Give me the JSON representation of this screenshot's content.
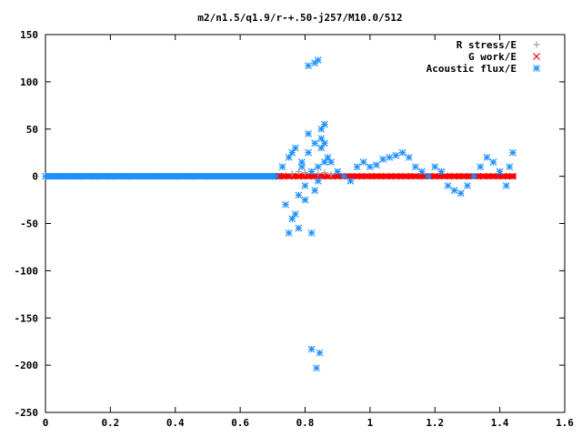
{
  "chart_data": {
    "type": "scatter",
    "title": "m2/n1.5/q1.9/r-+.50-j257/M10.0/512",
    "xlabel": "",
    "ylabel": "",
    "xlim": [
      0,
      1.6
    ],
    "ylim": [
      -250,
      150
    ],
    "xticks": [
      0,
      0.2,
      0.4,
      0.6,
      0.8,
      1,
      1.2,
      1.4,
      1.6
    ],
    "xtick_labels": [
      "0",
      "0.2",
      "0.4",
      "0.6",
      "0.8",
      "1",
      "1.2",
      "1.4",
      "1.6"
    ],
    "yticks": [
      150,
      100,
      50,
      0,
      -50,
      -100,
      -150,
      -200,
      -250
    ],
    "ytick_labels": [
      "150",
      "100",
      "50",
      "0",
      "-50",
      "-100",
      "-150",
      "-200",
      "-250"
    ],
    "grid": false,
    "legend_position": "top-right",
    "series": [
      {
        "name": "R stress/E",
        "marker": "plus",
        "color": "#a0a0a0",
        "x": [
          0.76,
          0.78,
          0.8,
          0.82,
          0.84,
          0.86,
          0.88
        ],
        "y": [
          3,
          5,
          4,
          5,
          3,
          4,
          2
        ]
      },
      {
        "name": "G work/E",
        "marker": "cross",
        "color": "#ff0000",
        "x": [
          0.72,
          0.75,
          0.78,
          0.81,
          0.84,
          0.87,
          0.9,
          0.93,
          0.96,
          0.99,
          1.02,
          1.05,
          1.08,
          1.11,
          1.14,
          1.17,
          1.2,
          1.23,
          1.26,
          1.29,
          1.32,
          1.35,
          1.38,
          1.41,
          1.44
        ],
        "y": [
          0,
          0,
          0,
          0,
          0,
          0,
          0,
          0,
          0,
          0,
          0,
          0,
          0,
          0,
          0,
          0,
          0,
          0,
          0,
          0,
          0,
          0,
          0,
          0,
          0
        ]
      },
      {
        "name": "Acoustic flux/E",
        "marker": "star",
        "color": "#1e90ff",
        "x": [
          0.0,
          0.05,
          0.1,
          0.15,
          0.2,
          0.25,
          0.3,
          0.35,
          0.4,
          0.45,
          0.5,
          0.55,
          0.6,
          0.65,
          0.7,
          0.73,
          0.74,
          0.75,
          0.76,
          0.77,
          0.78,
          0.79,
          0.8,
          0.81,
          0.82,
          0.83,
          0.84,
          0.85,
          0.86,
          0.87,
          0.75,
          0.77,
          0.79,
          0.81,
          0.83,
          0.85,
          0.76,
          0.78,
          0.8,
          0.82,
          0.84,
          0.86,
          0.81,
          0.83,
          0.84,
          0.85,
          0.86,
          0.82,
          0.835,
          0.845,
          0.88,
          0.9,
          0.92,
          0.94,
          0.96,
          0.98,
          1.0,
          1.02,
          1.04,
          1.06,
          1.08,
          1.1,
          1.12,
          1.14,
          1.16,
          1.18,
          1.2,
          1.22,
          1.24,
          1.26,
          1.28,
          1.3,
          1.32,
          1.34,
          1.36,
          1.38,
          1.4,
          1.42,
          1.43,
          1.44
        ],
        "y": [
          0,
          0,
          0,
          0,
          0,
          0,
          0,
          0,
          0,
          0,
          0,
          0,
          0,
          0,
          0,
          10,
          -30,
          20,
          -45,
          30,
          -20,
          15,
          -10,
          25,
          -60,
          35,
          -5,
          40,
          15,
          20,
          -60,
          -40,
          10,
          45,
          -15,
          30,
          25,
          -55,
          -25,
          5,
          10,
          55,
          117,
          120,
          123,
          50,
          35,
          -183,
          -203,
          -187,
          15,
          5,
          0,
          -5,
          10,
          15,
          10,
          12,
          18,
          20,
          22,
          25,
          20,
          10,
          5,
          0,
          10,
          5,
          -10,
          -15,
          -18,
          -10,
          0,
          10,
          20,
          15,
          5,
          -10,
          10,
          25
        ]
      }
    ]
  }
}
